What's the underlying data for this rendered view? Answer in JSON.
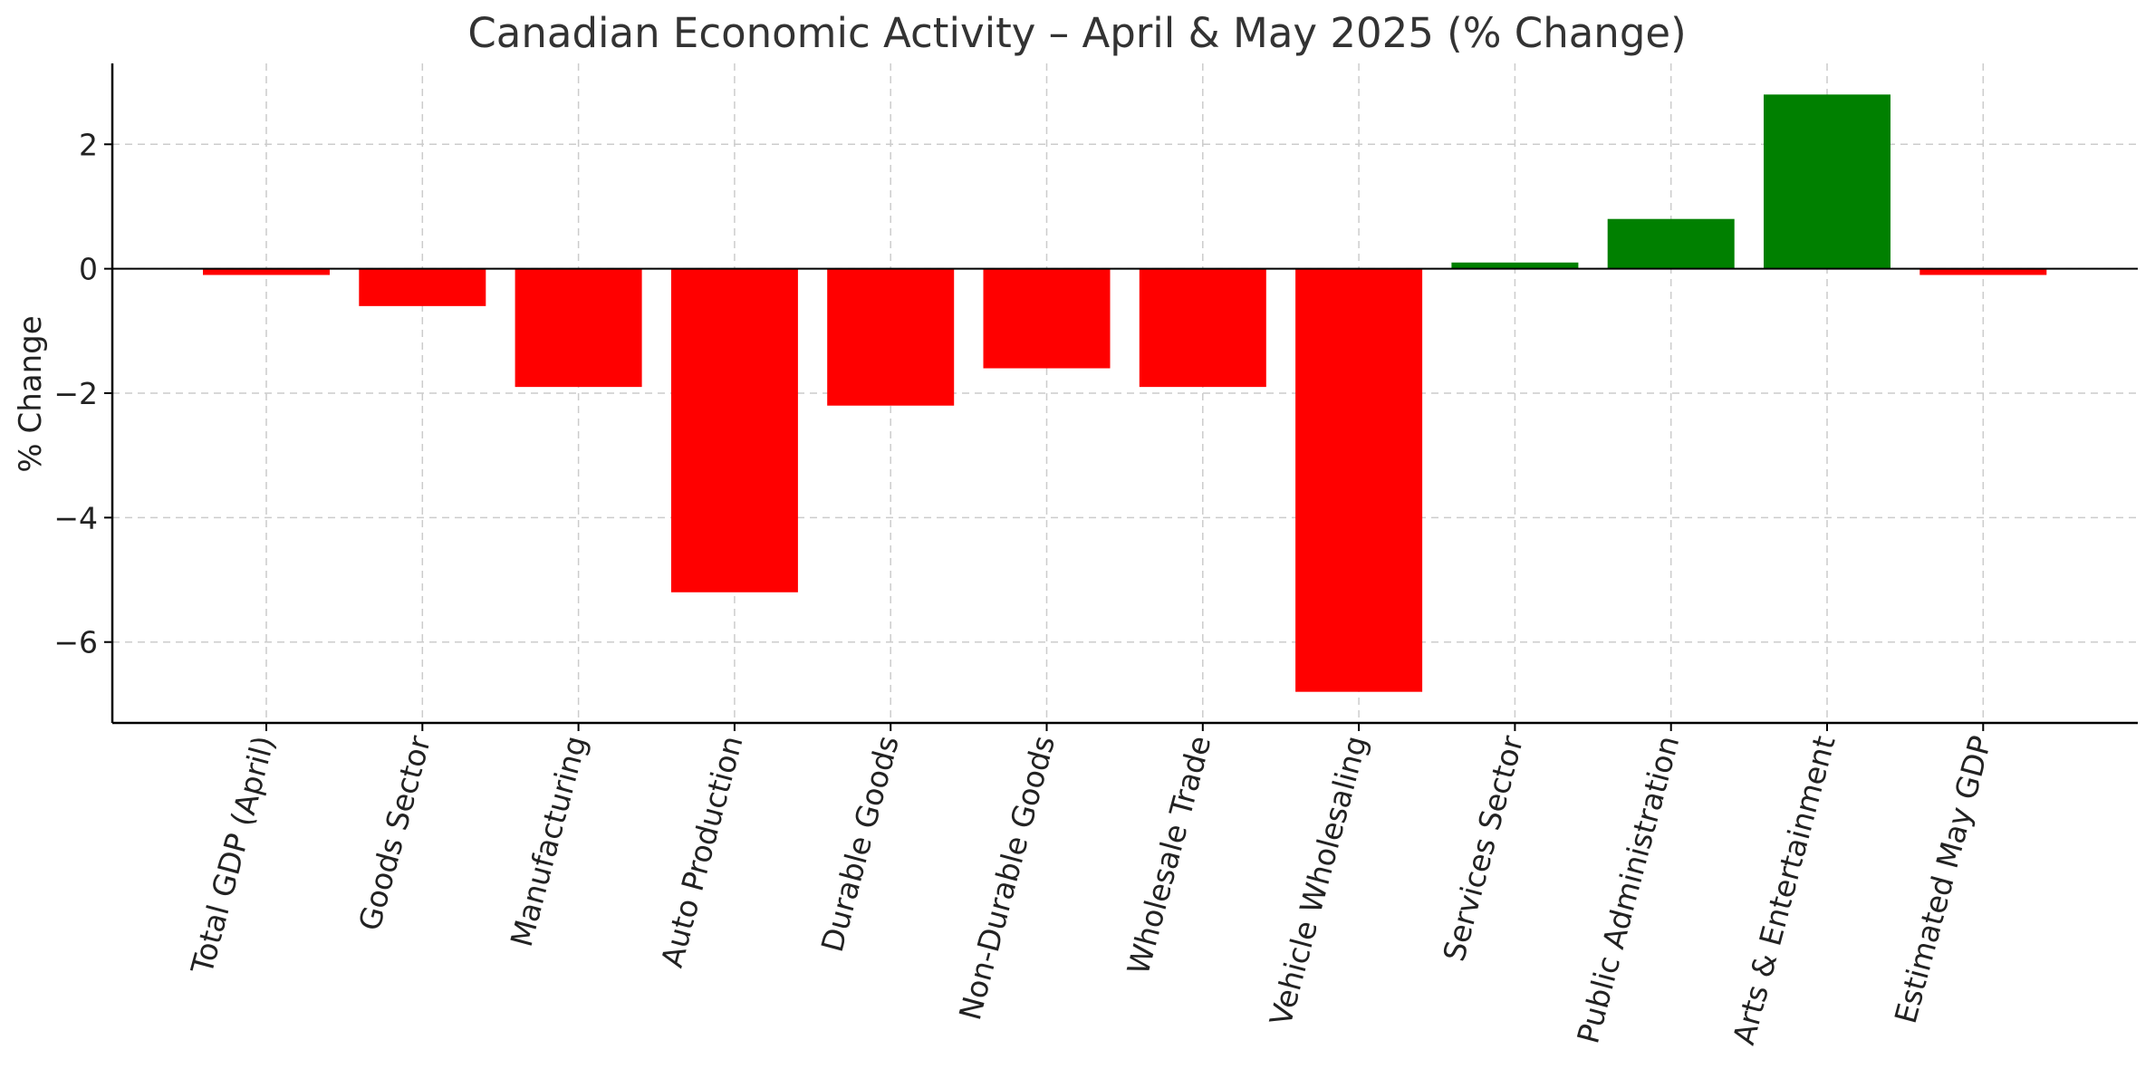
{
  "chart_data": {
    "type": "bar",
    "title": "Canadian Economic Activity – April & May 2025 (% Change)",
    "xlabel": "",
    "ylabel": "% Change",
    "categories": [
      "Total GDP (April)",
      "Goods Sector",
      "Manufacturing",
      "Auto Production",
      "Durable Goods",
      "Non-Durable Goods",
      "Wholesale Trade",
      "Vehicle Wholesaling",
      "Services Sector",
      "Public Administration",
      "Arts & Entertainment",
      "Estimated May GDP"
    ],
    "values": [
      -0.1,
      -0.6,
      -1.9,
      -5.2,
      -2.2,
      -1.6,
      -1.9,
      -6.8,
      0.1,
      0.8,
      2.8,
      -0.1
    ],
    "ylim": [
      -7.3,
      3.3
    ],
    "yticks": [
      2,
      0,
      -2,
      -4,
      -6
    ],
    "ytick_labels": [
      "2",
      "0",
      "−2",
      "−4",
      "−6"
    ],
    "grid": true,
    "zero_line": true,
    "colors": {
      "positive": "#008000",
      "negative": "#ff0000"
    }
  }
}
